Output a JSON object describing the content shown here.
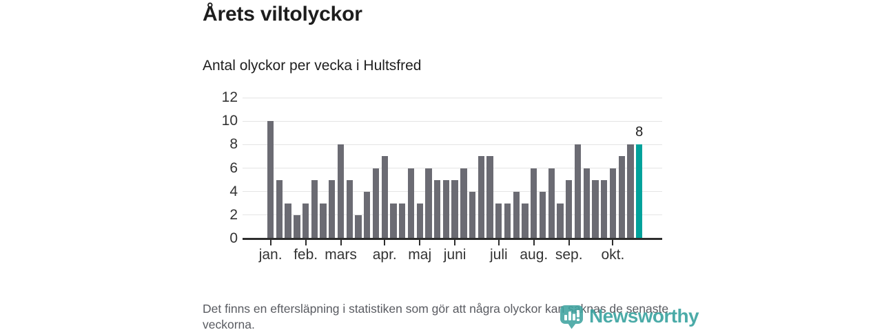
{
  "header": {
    "title": "Årets viltolyckor",
    "subtitle": "Antal olyckor per vecka i Hultsfred"
  },
  "chart_data": {
    "type": "bar",
    "title": "Årets viltolyckor",
    "subtitle": "Antal olyckor per vecka i Hultsfred",
    "xlabel": "",
    "ylabel": "",
    "ylim": [
      0,
      12
    ],
    "y_ticks": [
      0,
      2,
      4,
      6,
      8,
      10,
      12
    ],
    "grid": "horizontal",
    "legend_position": "none",
    "x_unit": "vecka",
    "x": [
      1,
      2,
      3,
      4,
      5,
      6,
      7,
      8,
      9,
      10,
      11,
      12,
      13,
      14,
      15,
      16,
      17,
      18,
      19,
      20,
      21,
      22,
      23,
      24,
      25,
      26,
      27,
      28,
      29,
      30,
      31,
      32,
      33,
      34,
      35,
      36,
      37,
      38,
      39,
      40,
      41,
      42,
      43
    ],
    "values": [
      10,
      5,
      3,
      2,
      3,
      5,
      3,
      5,
      8,
      5,
      2,
      4,
      6,
      7,
      3,
      3,
      6,
      3,
      6,
      5,
      5,
      5,
      6,
      4,
      7,
      7,
      3,
      3,
      4,
      3,
      6,
      4,
      6,
      3,
      5,
      8,
      6,
      5,
      5,
      6,
      7,
      8,
      8
    ],
    "month_ticks": [
      {
        "label": "jan.",
        "week": 1
      },
      {
        "label": "feb.",
        "week": 5
      },
      {
        "label": "mars",
        "week": 9
      },
      {
        "label": "apr.",
        "week": 14
      },
      {
        "label": "maj",
        "week": 18
      },
      {
        "label": "juni",
        "week": 22
      },
      {
        "label": "juli",
        "week": 27
      },
      {
        "label": "aug.",
        "week": 31
      },
      {
        "label": "sep.",
        "week": 35
      },
      {
        "label": "okt.",
        "week": 40
      }
    ],
    "highlight": {
      "index": 42,
      "value": 8,
      "label": "8"
    },
    "colors": {
      "bar": "#6b6b73",
      "highlight": "#00a29b",
      "axis": "#2d2d2d",
      "gridline": "#e4e4e4",
      "tick_label": "#333333"
    }
  },
  "footer": {
    "note": "Det finns en eftersläpning i statistiken som gör att några olyckor kan saknas de senaste veckorna."
  },
  "branding": {
    "logo_text": "Newsworthy",
    "logo_color": "#33a09d",
    "logo_icon": "newsworthy-bubble-bar-chart-icon"
  }
}
